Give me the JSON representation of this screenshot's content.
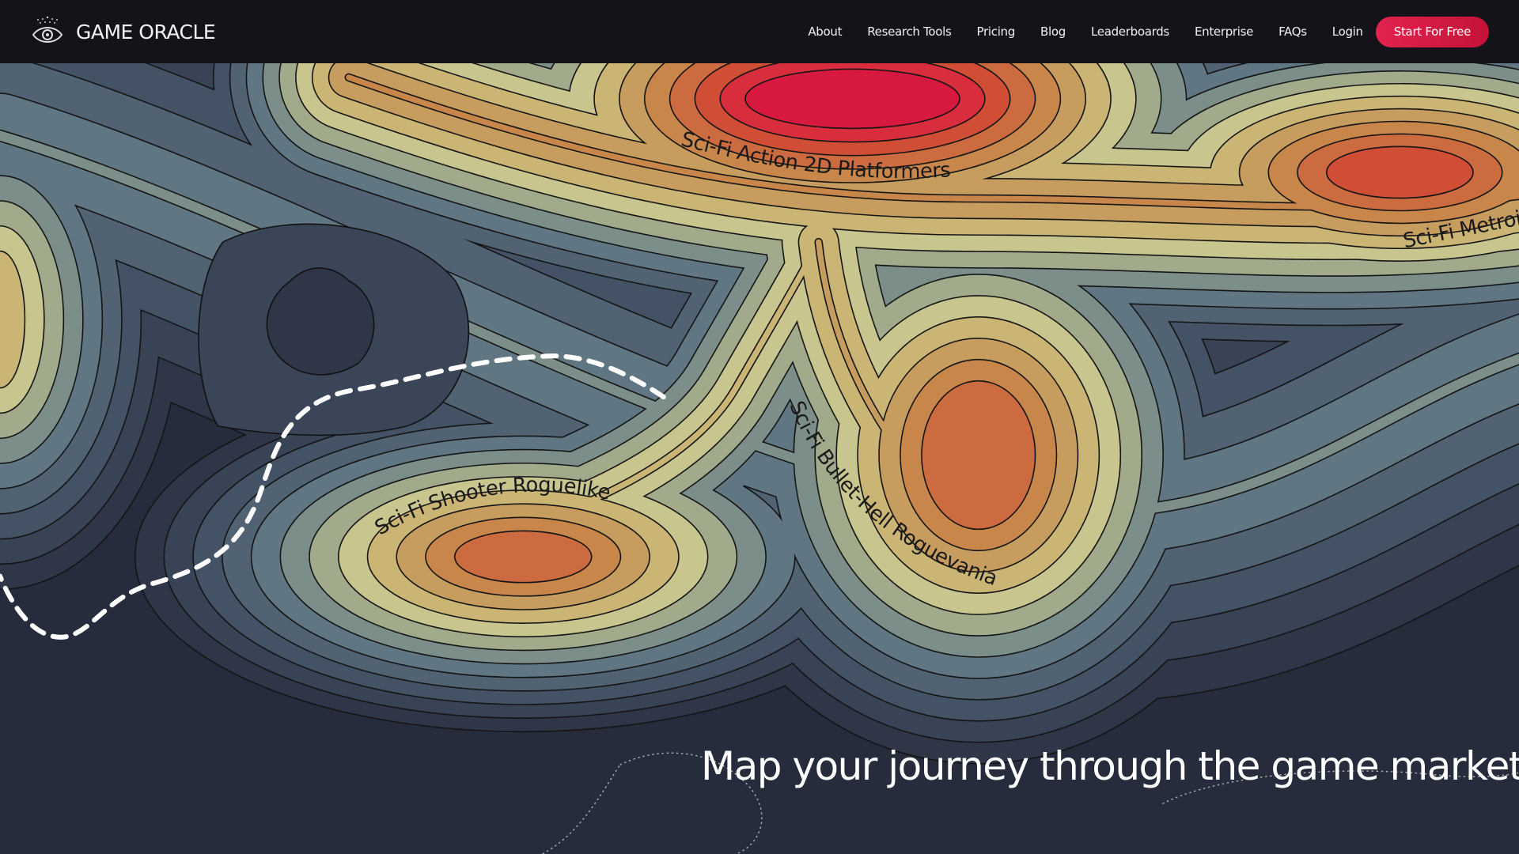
{
  "brand": {
    "name": "GAME ORACLE",
    "logo_icon": "eye-icon"
  },
  "nav": {
    "items": [
      "About",
      "Research Tools",
      "Pricing",
      "Blog",
      "Leaderboards",
      "Enterprise",
      "FAQs",
      "Login"
    ],
    "cta": "Start For Free"
  },
  "hero": {
    "headline": "Map your journey through the game market",
    "map_labels": [
      "Sci-Fi Action 2D Platformers",
      "Sci-Fi Metroidvania",
      "Sci-Fi Shooter Roguelike",
      "Sci-Fi Bullet-Hell Roguevania"
    ]
  },
  "colors": {
    "accent": "#e2234f",
    "nav_bg": "#141319",
    "contour_palette": [
      "#262c3b",
      "#2f3647",
      "#384355",
      "#435264",
      "#516373",
      "#607682",
      "#7b8e8a",
      "#a2aa8c",
      "#c8c58f",
      "#cbb574",
      "#c69d5e",
      "#c8864b",
      "#cb6b3f",
      "#d04d36",
      "#d82d3c",
      "#d8193f"
    ]
  }
}
